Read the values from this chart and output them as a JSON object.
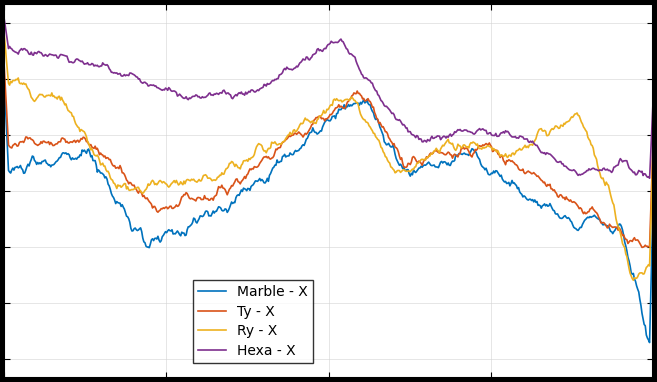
{
  "title": "",
  "xlabel": "",
  "ylabel": "",
  "colors": {
    "marble": "#0072BD",
    "ty": "#D95319",
    "ry": "#EDB120",
    "hexa": "#7E2F8E"
  },
  "legend_labels": [
    "Marble - X",
    "Ty - X",
    "Ry - X",
    "Hexa - X"
  ],
  "background_color": "#ffffff",
  "grid_color": "#d3d3d3",
  "xlim": [
    0,
    1
  ],
  "ylim": [
    0,
    1
  ],
  "line_width": 1.2
}
